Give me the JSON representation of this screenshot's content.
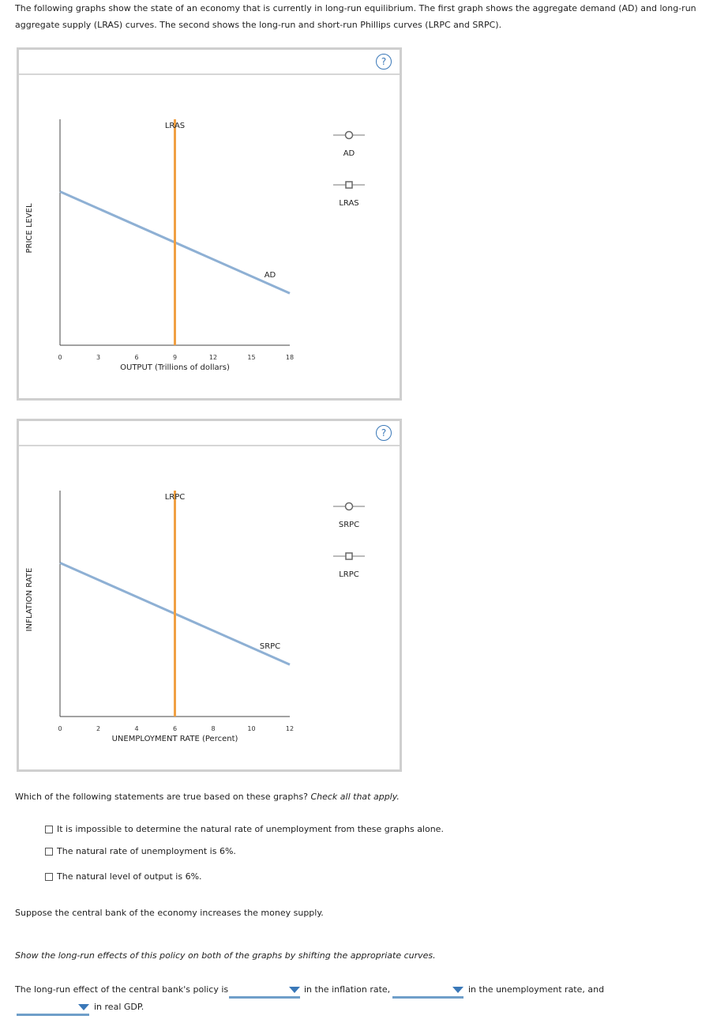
{
  "intro": "The following graphs show the state of an economy that is currently in long-run equilibrium. The first graph shows the aggregate demand (AD) and long-run aggregate supply (LRAS) curves. The second shows the long-run and short-run Phillips curves (LRPC and SRPC).",
  "help_label": "?",
  "graph1": {
    "ylabel": "PRICE LEVEL",
    "xlabel": "OUTPUT (Trillions of dollars)",
    "xticks": [
      "0",
      "3",
      "6",
      "9",
      "12",
      "15",
      "18"
    ],
    "vertical_label": "LRAS",
    "sloped_label": "AD",
    "legend": [
      {
        "marker": "circle",
        "label": "AD"
      },
      {
        "marker": "square",
        "label": "LRAS"
      }
    ]
  },
  "graph2": {
    "ylabel": "INFLATION RATE",
    "xlabel": "UNEMPLOYMENT RATE (Percent)",
    "xticks": [
      "0",
      "2",
      "4",
      "6",
      "8",
      "10",
      "12"
    ],
    "vertical_label": "LRPC",
    "sloped_label": "SRPC",
    "legend": [
      {
        "marker": "circle",
        "label": "SRPC"
      },
      {
        "marker": "square",
        "label": "LRPC"
      }
    ]
  },
  "chart_data": [
    {
      "type": "line",
      "xlabel": "OUTPUT (Trillions of dollars)",
      "ylabel": "PRICE LEVEL",
      "xlim": [
        0,
        18
      ],
      "x_ticks": [
        0,
        3,
        6,
        9,
        12,
        15,
        18
      ],
      "series": [
        {
          "name": "AD",
          "color": "#8eb0d4",
          "x": [
            0,
            18
          ],
          "y_relative": [
            0.68,
            0.23
          ]
        },
        {
          "name": "LRAS",
          "color": "#f0a043",
          "x": [
            9,
            9
          ],
          "y_relative": [
            0,
            1
          ]
        }
      ]
    },
    {
      "type": "line",
      "xlabel": "UNEMPLOYMENT RATE (Percent)",
      "ylabel": "INFLATION RATE",
      "xlim": [
        0,
        12
      ],
      "x_ticks": [
        0,
        2,
        4,
        6,
        8,
        10,
        12
      ],
      "series": [
        {
          "name": "SRPC",
          "color": "#8eb0d4",
          "x": [
            0,
            12
          ],
          "y_relative": [
            0.68,
            0.23
          ]
        },
        {
          "name": "LRPC",
          "color": "#f0a043",
          "x": [
            6,
            6
          ],
          "y_relative": [
            0,
            1
          ]
        }
      ]
    }
  ],
  "question1": {
    "prompt": "Which of the following statements are true based on these graphs?",
    "prompt_italic": "Check all that apply.",
    "options": [
      "It is impossible to determine the natural rate of unemployment from these graphs alone.",
      "The natural rate of unemployment is 6%.",
      "The natural level of output is 6%."
    ]
  },
  "scenario": "Suppose the central bank of the economy increases the money supply.",
  "instruction": "Show the long-run effects of this policy on both of the graphs by shifting the appropriate curves.",
  "sentence": {
    "part1": "The long-run effect of the central bank's policy is",
    "part2": "in the inflation rate,",
    "part3": "in the unemployment rate, and",
    "part4": "in real GDP."
  },
  "colors": {
    "demand": "#8eb0d4",
    "supply": "#f0a043",
    "accent": "#3a78b8"
  }
}
